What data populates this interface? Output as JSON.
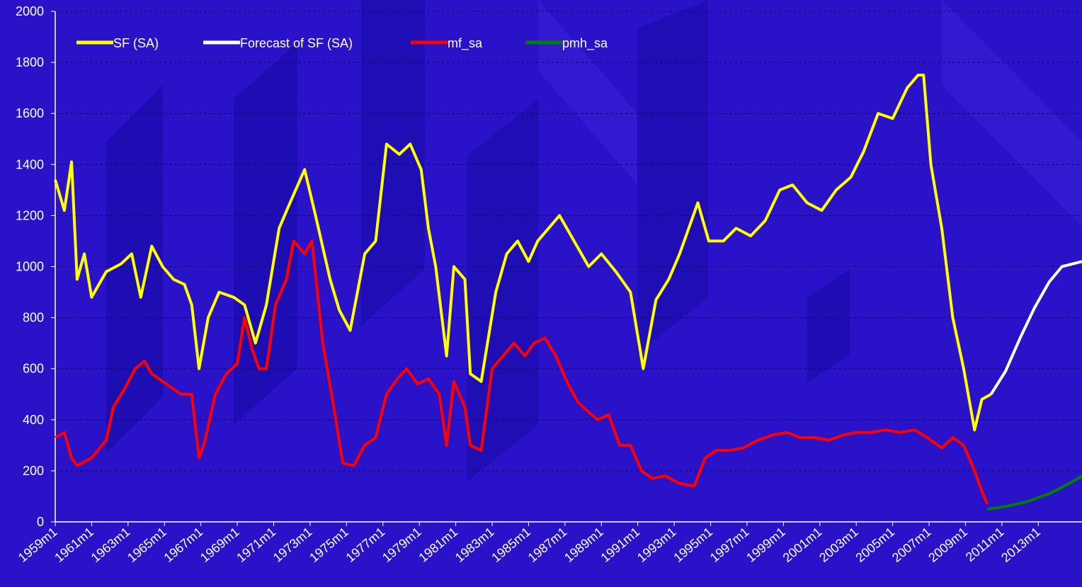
{
  "chart_data": {
    "type": "line",
    "xlim": [
      1959,
      2015.4
    ],
    "xticks": [
      {
        "value": 1959,
        "label": "1959m1"
      },
      {
        "value": 1961,
        "label": "1961m1"
      },
      {
        "value": 1963,
        "label": "1963m1"
      },
      {
        "value": 1965,
        "label": "1965m1"
      },
      {
        "value": 1967,
        "label": "1967m1"
      },
      {
        "value": 1969,
        "label": "1969m1"
      },
      {
        "value": 1971,
        "label": "1971m1"
      },
      {
        "value": 1973,
        "label": "1973m1"
      },
      {
        "value": 1975,
        "label": "1975m1"
      },
      {
        "value": 1977,
        "label": "1977m1"
      },
      {
        "value": 1979,
        "label": "1979m1"
      },
      {
        "value": 1981,
        "label": "1981m1"
      },
      {
        "value": 1983,
        "label": "1983m1"
      },
      {
        "value": 1985,
        "label": "1985m1"
      },
      {
        "value": 1987,
        "label": "1987m1"
      },
      {
        "value": 1989,
        "label": "1989m1"
      },
      {
        "value": 1991,
        "label": "1991m1"
      },
      {
        "value": 1993,
        "label": "1993m1"
      },
      {
        "value": 1995,
        "label": "1995m1"
      },
      {
        "value": 1997,
        "label": "1997m1"
      },
      {
        "value": 1999,
        "label": "1999m1"
      },
      {
        "value": 2001,
        "label": "2001m1"
      },
      {
        "value": 2003,
        "label": "2003m1"
      },
      {
        "value": 2005,
        "label": "2005m1"
      },
      {
        "value": 2007,
        "label": "2007m1"
      },
      {
        "value": 2009,
        "label": "2009m1"
      },
      {
        "value": 2011,
        "label": "2011m1"
      },
      {
        "value": 2013,
        "label": "2013m1"
      }
    ],
    "ylim": [
      0,
      2000
    ],
    "yticks": [
      0,
      200,
      400,
      600,
      800,
      1000,
      1200,
      1400,
      1600,
      1800,
      2000
    ],
    "grid": true,
    "legend": "top",
    "series": [
      {
        "name": "SF (SA)",
        "color": "#ffff00",
        "x": [
          1959.0,
          1959.5,
          1959.9,
          1960.2,
          1960.6,
          1961.0,
          1961.8,
          1962.6,
          1963.2,
          1963.7,
          1964.3,
          1964.9,
          1965.5,
          1966.1,
          1966.5,
          1966.9,
          1967.4,
          1968.0,
          1968.8,
          1969.4,
          1970.0,
          1970.6,
          1971.3,
          1971.9,
          1972.7,
          1973.3,
          1974.1,
          1974.6,
          1975.2,
          1976.0,
          1976.6,
          1977.2,
          1977.9,
          1978.5,
          1979.1,
          1979.5,
          1979.9,
          1980.5,
          1980.9,
          1981.5,
          1981.8,
          1982.4,
          1983.2,
          1983.8,
          1984.4,
          1985.0,
          1985.5,
          1986.1,
          1986.7,
          1987.5,
          1988.3,
          1989.0,
          1989.8,
          1990.6,
          1991.3,
          1992.0,
          1992.7,
          1993.3,
          1994.3,
          1994.9,
          1995.7,
          1996.4,
          1997.2,
          1998.0,
          1998.8,
          1999.5,
          2000.3,
          2001.1,
          2001.9,
          2002.7,
          2003.4,
          2004.2,
          2005.0,
          2005.8,
          2006.4,
          2006.7,
          2007.1,
          2007.7,
          2008.3,
          2008.9,
          2009.5,
          2009.9,
          2010.4
        ],
        "values": [
          1340,
          1220,
          1410,
          950,
          1050,
          880,
          980,
          1010,
          1050,
          880,
          1080,
          1000,
          950,
          930,
          850,
          600,
          800,
          900,
          880,
          850,
          700,
          850,
          1150,
          1250,
          1380,
          1200,
          950,
          830,
          750,
          1050,
          1100,
          1480,
          1440,
          1480,
          1380,
          1150,
          1000,
          650,
          1000,
          950,
          580,
          550,
          900,
          1050,
          1100,
          1020,
          1100,
          1150,
          1200,
          1100,
          1000,
          1050,
          980,
          900,
          600,
          870,
          950,
          1050,
          1250,
          1100,
          1100,
          1150,
          1120,
          1180,
          1300,
          1320,
          1250,
          1220,
          1300,
          1350,
          1450,
          1600,
          1580,
          1700,
          1750,
          1750,
          1400,
          1150,
          800,
          600,
          360,
          480,
          500
        ]
      },
      {
        "name": "Forecast of SF (SA)",
        "color": "#ffffff",
        "x": [
          2010.4,
          2011.2,
          2012.0,
          2012.8,
          2013.6,
          2014.3,
          2015.4
        ],
        "values": [
          500,
          590,
          720,
          840,
          940,
          1000,
          1020
        ]
      },
      {
        "name": "mf_sa",
        "color": "#ff0000",
        "x": [
          1959.0,
          1959.5,
          1959.9,
          1960.2,
          1961.0,
          1961.8,
          1962.2,
          1962.8,
          1963.4,
          1963.9,
          1964.3,
          1965.1,
          1965.9,
          1966.5,
          1966.9,
          1967.2,
          1967.8,
          1968.4,
          1969.0,
          1969.4,
          1969.8,
          1970.2,
          1970.6,
          1971.1,
          1971.7,
          1972.1,
          1972.7,
          1973.1,
          1973.7,
          1974.3,
          1974.8,
          1975.4,
          1976.0,
          1976.6,
          1977.2,
          1977.8,
          1978.3,
          1978.9,
          1979.5,
          1980.1,
          1980.5,
          1980.9,
          1981.5,
          1981.8,
          1982.4,
          1983.0,
          1983.6,
          1984.2,
          1984.8,
          1985.3,
          1985.9,
          1986.5,
          1987.1,
          1987.7,
          1988.3,
          1988.8,
          1989.4,
          1990.0,
          1990.6,
          1991.2,
          1991.8,
          1992.5,
          1993.3,
          1994.1,
          1994.7,
          1995.3,
          1996.0,
          1996.8,
          1997.6,
          1998.4,
          1999.2,
          1999.9,
          2000.7,
          2001.5,
          2002.3,
          2003.0,
          2003.8,
          2004.6,
          2005.4,
          2006.2,
          2006.9,
          2007.7,
          2008.3,
          2008.9,
          2009.5,
          2009.9,
          2010.2
        ],
        "values": [
          330,
          350,
          250,
          220,
          250,
          320,
          450,
          520,
          600,
          630,
          580,
          540,
          500,
          500,
          250,
          310,
          500,
          580,
          620,
          800,
          680,
          600,
          600,
          850,
          950,
          1100,
          1050,
          1100,
          700,
          450,
          230,
          220,
          300,
          330,
          500,
          560,
          600,
          540,
          560,
          500,
          300,
          550,
          450,
          300,
          280,
          600,
          650,
          700,
          650,
          700,
          720,
          650,
          550,
          470,
          430,
          400,
          420,
          300,
          300,
          200,
          170,
          180,
          150,
          140,
          250,
          280,
          280,
          290,
          320,
          340,
          350,
          330,
          330,
          320,
          340,
          350,
          350,
          360,
          350,
          360,
          330,
          290,
          330,
          300,
          200,
          120,
          70
        ]
      },
      {
        "name": "pmh_sa",
        "color": "#008000",
        "x": [
          2010.2,
          2011.2,
          2012.4,
          2013.6,
          2014.7,
          2015.4
        ],
        "values": [
          50,
          60,
          80,
          110,
          150,
          180
        ]
      }
    ]
  }
}
